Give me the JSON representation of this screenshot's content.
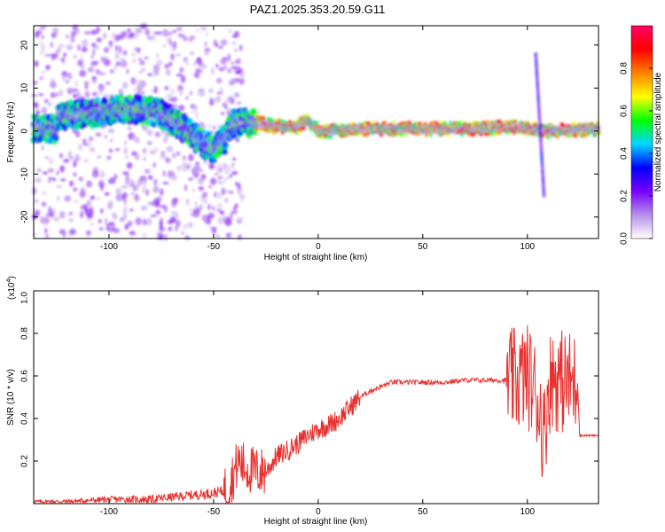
{
  "title": "PAZ1.2025.353.20.59.G11",
  "chart_data": [
    {
      "type": "heatmap",
      "xlabel": "Height of straight line (km)",
      "ylabel": "Frequency (Hz)",
      "xlim": [
        -136,
        134
      ],
      "ylim": [
        -25,
        24.5
      ],
      "xticks": [
        -100,
        -50,
        0,
        50,
        100
      ],
      "yticks": [
        -20,
        -10,
        0,
        10,
        20
      ],
      "colorbar": {
        "label": "Normalized spectral amplitude",
        "range": [
          0,
          1
        ],
        "ticks": [
          "0.0",
          "0.2",
          "0.4",
          "0.6",
          "0.8"
        ],
        "colors": [
          "#ffffff",
          "#b58ee8",
          "#7a00ff",
          "#0000ff",
          "#00d7ff",
          "#00ff00",
          "#ffff00",
          "#ff8000",
          "#ff0000",
          "#ff0066"
        ]
      },
      "ridge": [
        {
          "x": -125,
          "y": 3.5
        },
        {
          "x": -110,
          "y": 4
        },
        {
          "x": -95,
          "y": 5
        },
        {
          "x": -85,
          "y": 5
        },
        {
          "x": -75,
          "y": 4
        },
        {
          "x": -65,
          "y": 1
        },
        {
          "x": -55,
          "y": -3
        },
        {
          "x": -50,
          "y": -4
        },
        {
          "x": -45,
          "y": -2
        },
        {
          "x": -40,
          "y": 2
        },
        {
          "x": -30,
          "y": 2
        },
        {
          "x": -20,
          "y": 1
        },
        {
          "x": -10,
          "y": 1
        },
        {
          "x": -5,
          "y": 2.5
        },
        {
          "x": 0,
          "y": 0
        },
        {
          "x": 25,
          "y": 0.5
        },
        {
          "x": 50,
          "y": 0.5
        },
        {
          "x": 75,
          "y": 0.5
        },
        {
          "x": 90,
          "y": 1
        },
        {
          "x": 100,
          "y": 0.5
        },
        {
          "x": 110,
          "y": 0
        },
        {
          "x": 134,
          "y": 0.5
        }
      ]
    },
    {
      "type": "line",
      "xlabel": "Height of straight line (km)",
      "ylabel": "SNR (10 * v/v)",
      "scale_label": "(x10",
      "scale_exp": "4",
      "xlim": [
        -136,
        134
      ],
      "ylim": [
        0,
        1.0
      ],
      "xticks": [
        -100,
        -50,
        0,
        50,
        100
      ],
      "yticks": [
        0.2,
        0.4,
        0.6,
        0.8,
        1.0
      ],
      "yticklabels": [
        "0.2",
        "0.4",
        "0.6",
        "0.8",
        "1.0"
      ],
      "color": "#e8302e",
      "series": [
        {
          "x": [
            -136,
            -120,
            -100,
            -80,
            -70,
            -60,
            -50,
            -45,
            -42,
            -40,
            -38,
            -35,
            -30,
            -25,
            -20,
            -15,
            -10,
            -5,
            0,
            5,
            10,
            15,
            20,
            25,
            30,
            35,
            40,
            50,
            60,
            70,
            80,
            90,
            95,
            100,
            103,
            106,
            108,
            110,
            112,
            115,
            118,
            120,
            124,
            125,
            130,
            134
          ],
          "y": [
            0.01,
            0.01,
            0.02,
            0.02,
            0.03,
            0.04,
            0.05,
            0.06,
            0.1,
            0.15,
            0.2,
            0.17,
            0.15,
            0.15,
            0.22,
            0.25,
            0.28,
            0.32,
            0.35,
            0.37,
            0.4,
            0.45,
            0.5,
            0.53,
            0.55,
            0.57,
            0.57,
            0.57,
            0.57,
            0.58,
            0.58,
            0.58,
            0.58,
            0.6,
            0.55,
            0.45,
            0.3,
            0.55,
            0.6,
            0.58,
            0.57,
            0.57,
            0.57,
            0.32,
            0.32,
            0.32
          ]
        }
      ]
    }
  ]
}
